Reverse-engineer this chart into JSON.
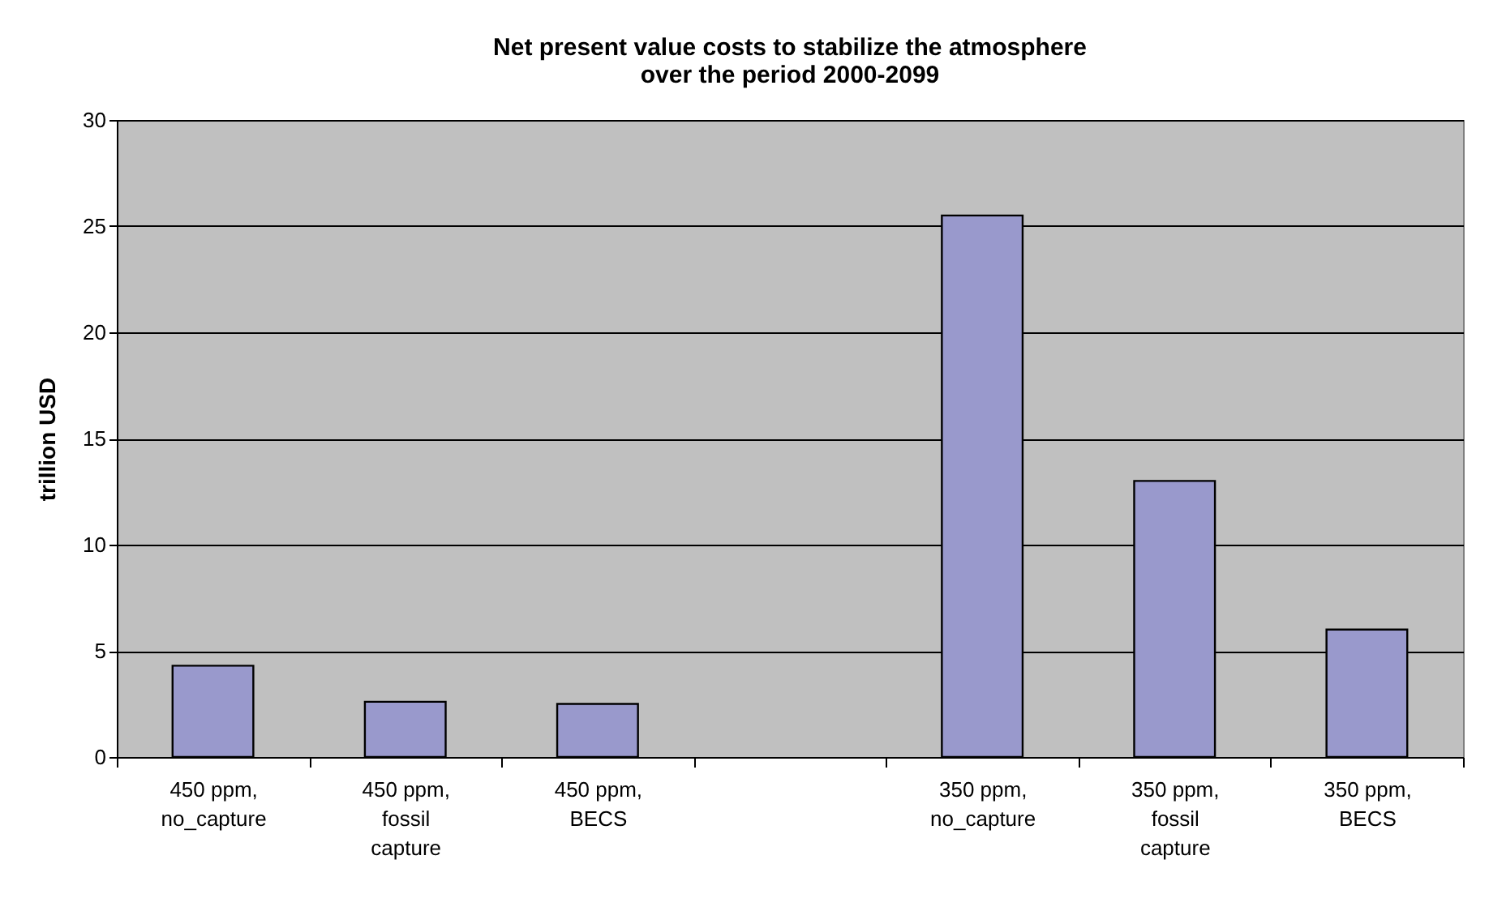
{
  "chart_data": {
    "type": "bar",
    "title": [
      "Net present value costs to stabilize the atmosphere",
      "over the period 2000-2099"
    ],
    "ylabel": "trillion USD",
    "categories": [
      "450 ppm,\nno_capture",
      "450 ppm,\nfossil\ncapture",
      "450 ppm,\nBECS",
      null,
      "350 ppm,\nno_capture",
      "350 ppm,\nfossil\ncapture",
      "350 ppm,\nBECS"
    ],
    "values": [
      4.3,
      2.6,
      2.5,
      null,
      25.5,
      13.0,
      6.0
    ],
    "color": "#9999cc",
    "ylim": [
      0,
      30
    ],
    "yticks": [
      0,
      5,
      10,
      15,
      20,
      25,
      30
    ],
    "grid": "y"
  }
}
